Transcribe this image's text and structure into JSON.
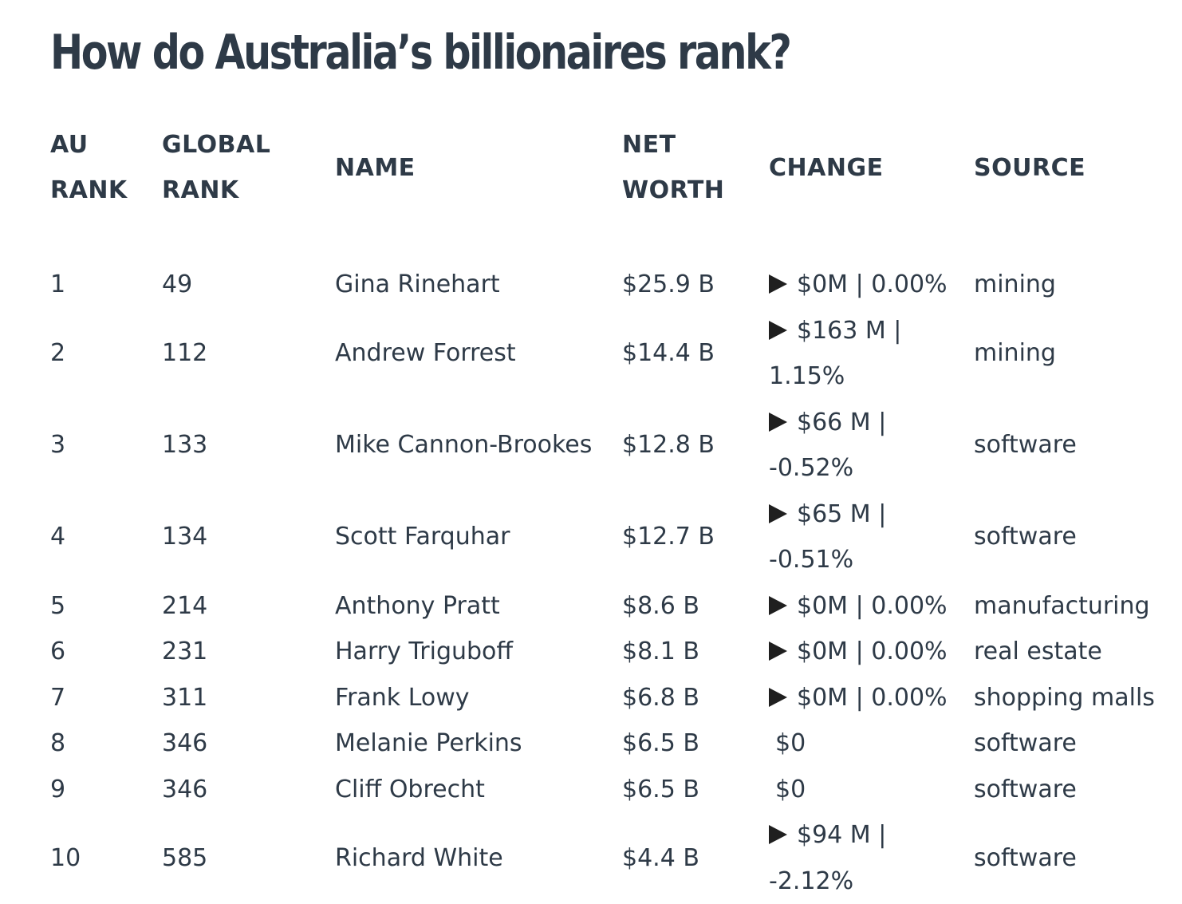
{
  "title": "How do Australia’s billionaires rank?",
  "table": {
    "headers": {
      "au_rank": [
        "AU",
        "RANK"
      ],
      "global_rank": [
        "GLOBAL",
        "RANK"
      ],
      "name": [
        "NAME"
      ],
      "net_worth": [
        "NET",
        "WORTH"
      ],
      "change": [
        "CHANGE"
      ],
      "source": [
        "SOURCE"
      ]
    },
    "rows": [
      {
        "au_rank": "1",
        "global_rank": "49",
        "name": "Gina Rinehart",
        "net_worth": "$25.9 B",
        "change": "$0M | 0.00%",
        "arrow": "triangle-right-icon",
        "source": "mining"
      },
      {
        "au_rank": "2",
        "global_rank": "112",
        "name": "Andrew Forrest",
        "net_worth": "$14.4 B",
        "change": "$163 M | 1.15%",
        "arrow": "triangle-right-icon",
        "source": "mining"
      },
      {
        "au_rank": "3",
        "global_rank": "133",
        "name": "Mike Cannon-Brookes",
        "net_worth": "$12.8 B",
        "change": "$66 M | -0.52%",
        "arrow": "triangle-right-icon",
        "source": "software"
      },
      {
        "au_rank": "4",
        "global_rank": "134",
        "name": "Scott Farquhar",
        "net_worth": "$12.7 B",
        "change": "$65 M | -0.51%",
        "arrow": "triangle-right-icon",
        "source": "software"
      },
      {
        "au_rank": "5",
        "global_rank": "214",
        "name": "Anthony Pratt",
        "net_worth": "$8.6 B",
        "change": "$0M | 0.00%",
        "arrow": "triangle-right-icon",
        "source": "manufacturing"
      },
      {
        "au_rank": "6",
        "global_rank": "231",
        "name": "Harry Triguboff",
        "net_worth": "$8.1 B",
        "change": "$0M | 0.00%",
        "arrow": "triangle-right-icon",
        "source": "real estate"
      },
      {
        "au_rank": "7",
        "global_rank": "311",
        "name": "Frank Lowy",
        "net_worth": "$6.8 B",
        "change": "$0M | 0.00%",
        "arrow": "triangle-right-icon",
        "source": "shopping malls"
      },
      {
        "au_rank": "8",
        "global_rank": "346",
        "name": "Melanie Perkins",
        "net_worth": "$6.5 B",
        "change": "$0",
        "arrow": "",
        "source": "software"
      },
      {
        "au_rank": "9",
        "global_rank": "346",
        "name": "Cliff Obrecht",
        "net_worth": "$6.5 B",
        "change": "$0",
        "arrow": "",
        "source": "software"
      },
      {
        "au_rank": "10",
        "global_rank": "585",
        "name": "Richard White",
        "net_worth": "$4.4 B",
        "change": "$94 M | -2.12%",
        "arrow": "triangle-right-icon",
        "source": "software"
      }
    ]
  }
}
